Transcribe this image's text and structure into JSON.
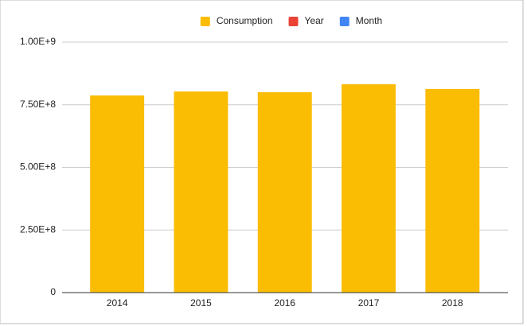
{
  "chart_data": {
    "type": "bar",
    "categories": [
      "2014",
      "2015",
      "2016",
      "2017",
      "2018"
    ],
    "series": [
      {
        "name": "Consumption",
        "color": "#fbbc04",
        "values": [
          787000000,
          803000000,
          800000000,
          832000000,
          813000000
        ]
      },
      {
        "name": "Year",
        "color": "#ea4335",
        "values": [
          null,
          null,
          null,
          null,
          null
        ]
      },
      {
        "name": "Month",
        "color": "#4285f4",
        "values": [
          null,
          null,
          null,
          null,
          null
        ]
      }
    ],
    "ylim": [
      0,
      1000000000
    ],
    "yticks": [
      0,
      {
        "value": 250000000,
        "label": "2.50E+8"
      },
      {
        "value": 500000000,
        "label": "5.00E+8"
      },
      {
        "value": 750000000,
        "label": "7.50E+8"
      },
      {
        "value": 1000000000,
        "label": "1.00E+9"
      }
    ],
    "grid": true,
    "legend": "top"
  }
}
